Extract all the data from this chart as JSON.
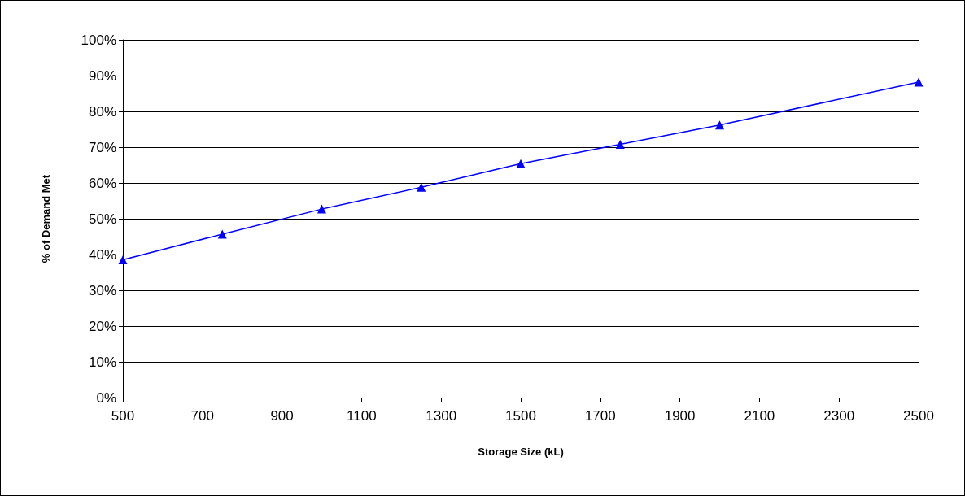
{
  "chart_data": {
    "type": "line",
    "xlabel": "Storage Size (kL)",
    "ylabel": "% of Demand Met",
    "x": [
      500,
      750,
      1000,
      1250,
      1500,
      1750,
      2000,
      2500
    ],
    "series": [
      {
        "color": "#0000ff",
        "values": [
          38.5,
          45.7,
          52.7,
          58.8,
          65.4,
          70.8,
          76.2,
          88.2
        ]
      }
    ],
    "xlim": [
      500,
      2500
    ],
    "xticks": [
      500,
      700,
      900,
      1100,
      1300,
      1500,
      1700,
      1900,
      2100,
      2300,
      2500
    ],
    "ylim": [
      0,
      100
    ],
    "yticks": [
      {
        "value": 0,
        "label": "0%"
      },
      {
        "value": 10,
        "label": "10%"
      },
      {
        "value": 20,
        "label": "20%"
      },
      {
        "value": 30,
        "label": "30%"
      },
      {
        "value": 40,
        "label": "40%"
      },
      {
        "value": 50,
        "label": "50%"
      },
      {
        "value": 60,
        "label": "60%"
      },
      {
        "value": 70,
        "label": "70%"
      },
      {
        "value": 80,
        "label": "80%"
      },
      {
        "value": 90,
        "label": "90%"
      },
      {
        "value": 100,
        "label": "100%"
      }
    ],
    "grid": "y",
    "marker": "triangle",
    "line_style": "solid"
  }
}
